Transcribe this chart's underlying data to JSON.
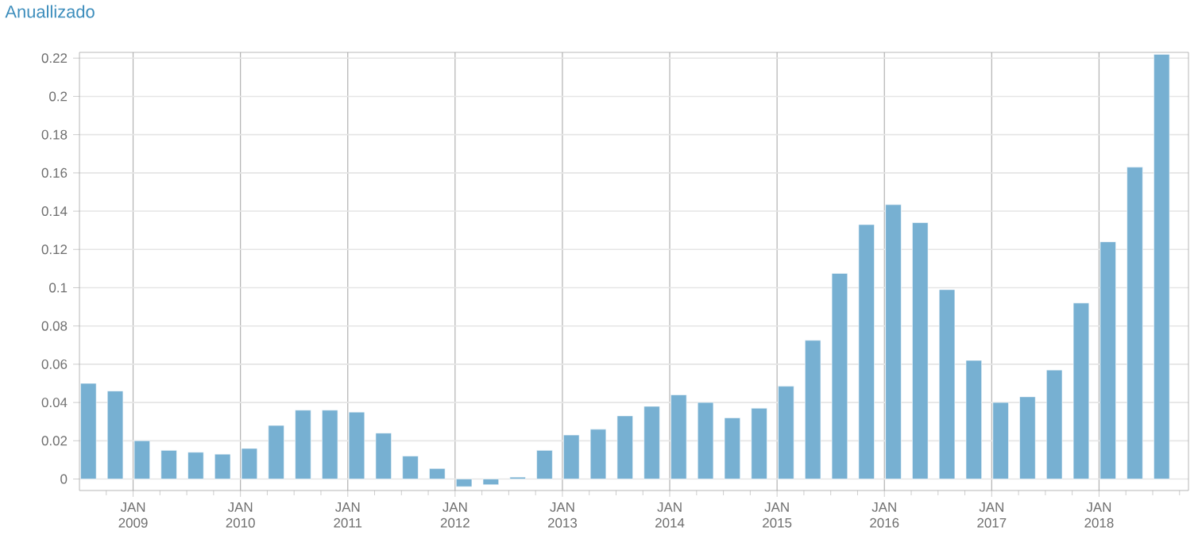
{
  "chart_data": {
    "type": "bar",
    "title": "Anuallizado",
    "color": "#77b0d2",
    "grid": true,
    "x": [
      "2008-08",
      "2008-11",
      "2009-02",
      "2009-05",
      "2009-08",
      "2009-11",
      "2010-02",
      "2010-05",
      "2010-08",
      "2010-11",
      "2011-02",
      "2011-05",
      "2011-08",
      "2011-11",
      "2012-02",
      "2012-05",
      "2012-08",
      "2012-11",
      "2013-02",
      "2013-05",
      "2013-08",
      "2013-11",
      "2014-02",
      "2014-05",
      "2014-08",
      "2014-11",
      "2015-02",
      "2015-05",
      "2015-08",
      "2015-11",
      "2016-02",
      "2016-05",
      "2016-08",
      "2016-11",
      "2017-02",
      "2017-05",
      "2017-08",
      "2017-11",
      "2018-02",
      "2018-05",
      "2018-08"
    ],
    "values": [
      0.05,
      0.046,
      0.02,
      0.015,
      0.014,
      0.013,
      0.016,
      0.028,
      0.036,
      0.036,
      0.035,
      0.024,
      0.012,
      0.0055,
      -0.004,
      -0.003,
      0.001,
      0.015,
      0.023,
      0.026,
      0.033,
      0.038,
      0.044,
      0.04,
      0.032,
      0.037,
      0.0485,
      0.0725,
      0.1075,
      0.133,
      0.1434,
      0.134,
      0.099,
      0.062,
      0.04,
      0.043,
      0.057,
      0.092,
      0.124,
      0.163,
      0.222
    ],
    "xlim": [
      "2008-07",
      "2018-11"
    ],
    "xticks": [
      {
        "value": "2008-10",
        "label": null
      },
      {
        "value": "2009-01",
        "label": "JAN 2009"
      },
      {
        "value": "2009-04",
        "label": null
      },
      {
        "value": "2009-07",
        "label": null
      },
      {
        "value": "2009-10",
        "label": null
      },
      {
        "value": "2010-01",
        "label": "JAN 2010"
      },
      {
        "value": "2010-04",
        "label": null
      },
      {
        "value": "2010-07",
        "label": null
      },
      {
        "value": "2010-10",
        "label": null
      },
      {
        "value": "2011-01",
        "label": "JAN 2011"
      },
      {
        "value": "2011-04",
        "label": null
      },
      {
        "value": "2011-07",
        "label": null
      },
      {
        "value": "2011-10",
        "label": null
      },
      {
        "value": "2012-01",
        "label": "JAN 2012"
      },
      {
        "value": "2012-04",
        "label": null
      },
      {
        "value": "2012-07",
        "label": null
      },
      {
        "value": "2012-10",
        "label": null
      },
      {
        "value": "2013-01",
        "label": "JAN 2013"
      },
      {
        "value": "2013-04",
        "label": null
      },
      {
        "value": "2013-07",
        "label": null
      },
      {
        "value": "2013-10",
        "label": null
      },
      {
        "value": "2014-01",
        "label": "JAN 2014"
      },
      {
        "value": "2014-04",
        "label": null
      },
      {
        "value": "2014-07",
        "label": null
      },
      {
        "value": "2014-10",
        "label": null
      },
      {
        "value": "2015-01",
        "label": "JAN 2015"
      },
      {
        "value": "2015-04",
        "label": null
      },
      {
        "value": "2015-07",
        "label": null
      },
      {
        "value": "2015-10",
        "label": null
      },
      {
        "value": "2016-01",
        "label": "JAN 2016"
      },
      {
        "value": "2016-04",
        "label": null
      },
      {
        "value": "2016-07",
        "label": null
      },
      {
        "value": "2016-10",
        "label": null
      },
      {
        "value": "2017-01",
        "label": "JAN 2017"
      },
      {
        "value": "2017-04",
        "label": null
      },
      {
        "value": "2017-07",
        "label": null
      },
      {
        "value": "2017-10",
        "label": null
      },
      {
        "value": "2018-01",
        "label": "JAN 2018"
      },
      {
        "value": "2018-04",
        "label": null
      },
      {
        "value": "2018-07",
        "label": null
      },
      {
        "value": "2018-10",
        "label": null
      }
    ],
    "ylim": [
      -0.006,
      0.223
    ],
    "yticks": [
      0,
      0.02,
      0.04,
      0.06,
      0.08,
      0.1,
      0.12,
      0.14,
      0.16,
      0.18,
      0.2,
      0.22
    ]
  }
}
